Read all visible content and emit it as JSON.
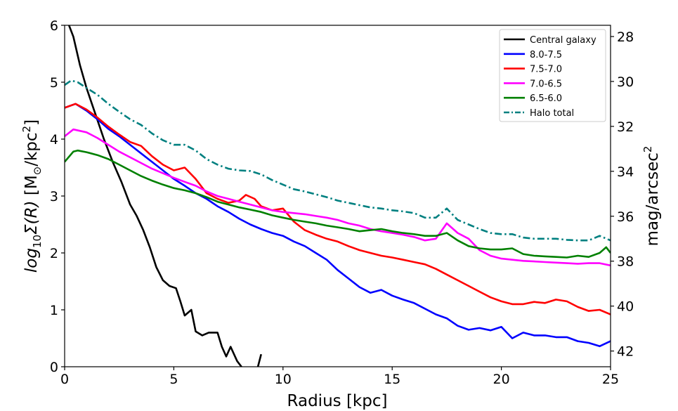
{
  "chart_data": {
    "type": "line",
    "xlabel": "Radius [kpc]",
    "ylabel_left": "log10 Σ(R) [M⊙/kpc2]",
    "ylabel_right": "mag/arcsec2",
    "xlim": [
      0,
      25
    ],
    "ylim": [
      0,
      6
    ],
    "right_ylim": [
      42.7,
      27.5
    ],
    "xticks": [
      0,
      5,
      10,
      15,
      20,
      25
    ],
    "yticks": [
      0,
      1,
      2,
      3,
      4,
      5,
      6
    ],
    "right_yticks": [
      28,
      30,
      32,
      34,
      36,
      38,
      40,
      42
    ],
    "legend_position": "upper-right",
    "series": [
      {
        "name": "Central galaxy",
        "color": "#000000",
        "style": "solid",
        "points": [
          [
            0.2,
            6.0
          ],
          [
            0.4,
            5.8
          ],
          [
            0.7,
            5.3
          ],
          [
            1.0,
            4.9
          ],
          [
            1.4,
            4.45
          ],
          [
            1.8,
            4.0
          ],
          [
            2.2,
            3.6
          ],
          [
            2.6,
            3.25
          ],
          [
            3.0,
            2.85
          ],
          [
            3.3,
            2.65
          ],
          [
            3.6,
            2.4
          ],
          [
            3.9,
            2.1
          ],
          [
            4.2,
            1.75
          ],
          [
            4.5,
            1.52
          ],
          [
            4.8,
            1.42
          ],
          [
            5.1,
            1.38
          ],
          [
            5.3,
            1.15
          ],
          [
            5.5,
            0.9
          ],
          [
            5.8,
            1.0
          ],
          [
            6.0,
            0.62
          ],
          [
            6.3,
            0.55
          ],
          [
            6.6,
            0.6
          ],
          [
            7.0,
            0.6
          ],
          [
            7.2,
            0.35
          ],
          [
            7.4,
            0.18
          ],
          [
            7.6,
            0.35
          ],
          [
            7.9,
            0.1
          ],
          [
            8.1,
            0.0
          ]
        ]
      },
      {
        "name": "Central galaxy (tail)",
        "color": "#000000",
        "style": "solid",
        "legend": false,
        "points": [
          [
            8.85,
            0.0
          ],
          [
            9.0,
            0.22
          ]
        ]
      },
      {
        "name": "8.0-7.5",
        "color": "#0000ff",
        "style": "solid",
        "points": [
          [
            0,
            4.55
          ],
          [
            0.5,
            4.62
          ],
          [
            1,
            4.5
          ],
          [
            1.5,
            4.35
          ],
          [
            2,
            4.18
          ],
          [
            2.5,
            4.05
          ],
          [
            3,
            3.9
          ],
          [
            3.5,
            3.75
          ],
          [
            4,
            3.6
          ],
          [
            4.5,
            3.45
          ],
          [
            5,
            3.3
          ],
          [
            5.5,
            3.18
          ],
          [
            6,
            3.05
          ],
          [
            6.5,
            2.95
          ],
          [
            7,
            2.82
          ],
          [
            7.5,
            2.72
          ],
          [
            8,
            2.6
          ],
          [
            8.5,
            2.5
          ],
          [
            9,
            2.42
          ],
          [
            9.5,
            2.35
          ],
          [
            10,
            2.3
          ],
          [
            10.5,
            2.2
          ],
          [
            11,
            2.12
          ],
          [
            11.5,
            2.0
          ],
          [
            12,
            1.88
          ],
          [
            12.5,
            1.7
          ],
          [
            13,
            1.55
          ],
          [
            13.5,
            1.4
          ],
          [
            14,
            1.3
          ],
          [
            14.5,
            1.35
          ],
          [
            15,
            1.25
          ],
          [
            15.5,
            1.18
          ],
          [
            16,
            1.12
          ],
          [
            16.5,
            1.02
          ],
          [
            17,
            0.92
          ],
          [
            17.5,
            0.85
          ],
          [
            18,
            0.72
          ],
          [
            18.5,
            0.65
          ],
          [
            19,
            0.68
          ],
          [
            19.5,
            0.64
          ],
          [
            20,
            0.7
          ],
          [
            20.5,
            0.5
          ],
          [
            21,
            0.6
          ],
          [
            21.5,
            0.55
          ],
          [
            22,
            0.55
          ],
          [
            22.5,
            0.52
          ],
          [
            23,
            0.52
          ],
          [
            23.5,
            0.45
          ],
          [
            24,
            0.42
          ],
          [
            24.5,
            0.36
          ],
          [
            25,
            0.45
          ]
        ]
      },
      {
        "name": "7.5-7.0",
        "color": "#ff0000",
        "style": "solid",
        "points": [
          [
            0,
            4.55
          ],
          [
            0.5,
            4.62
          ],
          [
            1,
            4.52
          ],
          [
            1.5,
            4.38
          ],
          [
            2,
            4.22
          ],
          [
            2.5,
            4.08
          ],
          [
            3,
            3.95
          ],
          [
            3.5,
            3.88
          ],
          [
            4,
            3.7
          ],
          [
            4.5,
            3.55
          ],
          [
            5,
            3.45
          ],
          [
            5.5,
            3.5
          ],
          [
            6,
            3.3
          ],
          [
            6.5,
            3.05
          ],
          [
            7,
            2.95
          ],
          [
            7.5,
            2.88
          ],
          [
            8,
            2.92
          ],
          [
            8.3,
            3.02
          ],
          [
            8.7,
            2.95
          ],
          [
            9,
            2.82
          ],
          [
            9.5,
            2.75
          ],
          [
            10,
            2.78
          ],
          [
            10.5,
            2.55
          ],
          [
            11,
            2.4
          ],
          [
            11.5,
            2.32
          ],
          [
            12,
            2.25
          ],
          [
            12.5,
            2.2
          ],
          [
            13,
            2.12
          ],
          [
            13.5,
            2.05
          ],
          [
            14,
            2.0
          ],
          [
            14.5,
            1.95
          ],
          [
            15,
            1.92
          ],
          [
            15.5,
            1.88
          ],
          [
            16,
            1.84
          ],
          [
            16.5,
            1.8
          ],
          [
            17,
            1.72
          ],
          [
            17.5,
            1.62
          ],
          [
            18,
            1.52
          ],
          [
            18.5,
            1.42
          ],
          [
            19,
            1.32
          ],
          [
            19.5,
            1.22
          ],
          [
            20,
            1.15
          ],
          [
            20.5,
            1.1
          ],
          [
            21,
            1.1
          ],
          [
            21.5,
            1.14
          ],
          [
            22,
            1.12
          ],
          [
            22.5,
            1.18
          ],
          [
            23,
            1.15
          ],
          [
            23.5,
            1.05
          ],
          [
            24,
            0.98
          ],
          [
            24.5,
            1.0
          ],
          [
            25,
            0.92
          ]
        ]
      },
      {
        "name": "7.0-6.5",
        "color": "#ff00ff",
        "style": "solid",
        "points": [
          [
            0,
            4.05
          ],
          [
            0.4,
            4.17
          ],
          [
            1,
            4.12
          ],
          [
            1.5,
            4.02
          ],
          [
            2,
            3.9
          ],
          [
            2.5,
            3.78
          ],
          [
            3,
            3.68
          ],
          [
            3.5,
            3.58
          ],
          [
            4,
            3.48
          ],
          [
            4.5,
            3.4
          ],
          [
            5,
            3.32
          ],
          [
            5.5,
            3.25
          ],
          [
            6,
            3.18
          ],
          [
            6.5,
            3.08
          ],
          [
            7,
            3.0
          ],
          [
            7.5,
            2.95
          ],
          [
            8,
            2.9
          ],
          [
            8.5,
            2.85
          ],
          [
            9,
            2.8
          ],
          [
            9.5,
            2.75
          ],
          [
            10,
            2.72
          ],
          [
            10.5,
            2.7
          ],
          [
            11,
            2.68
          ],
          [
            11.5,
            2.65
          ],
          [
            12,
            2.62
          ],
          [
            12.5,
            2.58
          ],
          [
            13,
            2.52
          ],
          [
            13.5,
            2.48
          ],
          [
            14,
            2.42
          ],
          [
            14.5,
            2.38
          ],
          [
            15,
            2.35
          ],
          [
            15.5,
            2.32
          ],
          [
            16,
            2.28
          ],
          [
            16.5,
            2.22
          ],
          [
            17,
            2.25
          ],
          [
            17.5,
            2.52
          ],
          [
            18,
            2.35
          ],
          [
            18.5,
            2.25
          ],
          [
            19,
            2.05
          ],
          [
            19.5,
            1.95
          ],
          [
            20,
            1.9
          ],
          [
            20.5,
            1.88
          ],
          [
            21,
            1.86
          ],
          [
            21.5,
            1.85
          ],
          [
            22,
            1.84
          ],
          [
            22.5,
            1.83
          ],
          [
            23,
            1.82
          ],
          [
            23.5,
            1.81
          ],
          [
            24,
            1.82
          ],
          [
            24.5,
            1.82
          ],
          [
            25,
            1.78
          ]
        ]
      },
      {
        "name": "6.5-6.0",
        "color": "#008000",
        "style": "solid",
        "points": [
          [
            0,
            3.6
          ],
          [
            0.4,
            3.78
          ],
          [
            0.6,
            3.8
          ],
          [
            1,
            3.77
          ],
          [
            1.5,
            3.72
          ],
          [
            2,
            3.65
          ],
          [
            2.5,
            3.55
          ],
          [
            3,
            3.45
          ],
          [
            3.5,
            3.35
          ],
          [
            4,
            3.27
          ],
          [
            4.5,
            3.2
          ],
          [
            5,
            3.14
          ],
          [
            5.5,
            3.1
          ],
          [
            6,
            3.05
          ],
          [
            6.5,
            2.98
          ],
          [
            7,
            2.9
          ],
          [
            7.5,
            2.85
          ],
          [
            8,
            2.8
          ],
          [
            8.5,
            2.76
          ],
          [
            9,
            2.72
          ],
          [
            9.5,
            2.66
          ],
          [
            10,
            2.62
          ],
          [
            10.5,
            2.58
          ],
          [
            11,
            2.55
          ],
          [
            11.5,
            2.52
          ],
          [
            12,
            2.48
          ],
          [
            12.5,
            2.45
          ],
          [
            13,
            2.42
          ],
          [
            13.5,
            2.38
          ],
          [
            14,
            2.4
          ],
          [
            14.5,
            2.42
          ],
          [
            15,
            2.38
          ],
          [
            15.5,
            2.35
          ],
          [
            16,
            2.33
          ],
          [
            16.5,
            2.3
          ],
          [
            17,
            2.3
          ],
          [
            17.5,
            2.35
          ],
          [
            18,
            2.22
          ],
          [
            18.5,
            2.12
          ],
          [
            19,
            2.08
          ],
          [
            19.5,
            2.06
          ],
          [
            20,
            2.06
          ],
          [
            20.5,
            2.08
          ],
          [
            21,
            1.98
          ],
          [
            21.5,
            1.95
          ],
          [
            22,
            1.94
          ],
          [
            22.5,
            1.93
          ],
          [
            23,
            1.92
          ],
          [
            23.5,
            1.95
          ],
          [
            24,
            1.93
          ],
          [
            24.5,
            2.0
          ],
          [
            24.8,
            2.1
          ],
          [
            25,
            2.0
          ]
        ]
      },
      {
        "name": "Halo total",
        "color": "#008080",
        "style": "dashdot",
        "points": [
          [
            0,
            4.95
          ],
          [
            0.3,
            5.03
          ],
          [
            0.6,
            5.0
          ],
          [
            1,
            4.9
          ],
          [
            1.5,
            4.78
          ],
          [
            2,
            4.62
          ],
          [
            2.5,
            4.48
          ],
          [
            3,
            4.35
          ],
          [
            3.5,
            4.25
          ],
          [
            4,
            4.1
          ],
          [
            4.5,
            3.98
          ],
          [
            5,
            3.9
          ],
          [
            5.5,
            3.9
          ],
          [
            6,
            3.8
          ],
          [
            6.5,
            3.65
          ],
          [
            7,
            3.55
          ],
          [
            7.5,
            3.48
          ],
          [
            8,
            3.45
          ],
          [
            8.5,
            3.44
          ],
          [
            9,
            3.38
          ],
          [
            9.5,
            3.28
          ],
          [
            10,
            3.2
          ],
          [
            10.5,
            3.12
          ],
          [
            11,
            3.08
          ],
          [
            11.5,
            3.03
          ],
          [
            12,
            2.98
          ],
          [
            12.5,
            2.92
          ],
          [
            13,
            2.88
          ],
          [
            13.5,
            2.84
          ],
          [
            14,
            2.8
          ],
          [
            14.5,
            2.78
          ],
          [
            15,
            2.75
          ],
          [
            15.5,
            2.73
          ],
          [
            16,
            2.7
          ],
          [
            16.5,
            2.62
          ],
          [
            17,
            2.62
          ],
          [
            17.5,
            2.78
          ],
          [
            18,
            2.58
          ],
          [
            18.5,
            2.5
          ],
          [
            19,
            2.42
          ],
          [
            19.5,
            2.35
          ],
          [
            20,
            2.33
          ],
          [
            20.5,
            2.33
          ],
          [
            21,
            2.27
          ],
          [
            21.5,
            2.25
          ],
          [
            22,
            2.25
          ],
          [
            22.5,
            2.25
          ],
          [
            23,
            2.23
          ],
          [
            23.5,
            2.22
          ],
          [
            24,
            2.22
          ],
          [
            24.5,
            2.3
          ],
          [
            25,
            2.22
          ]
        ]
      }
    ]
  }
}
